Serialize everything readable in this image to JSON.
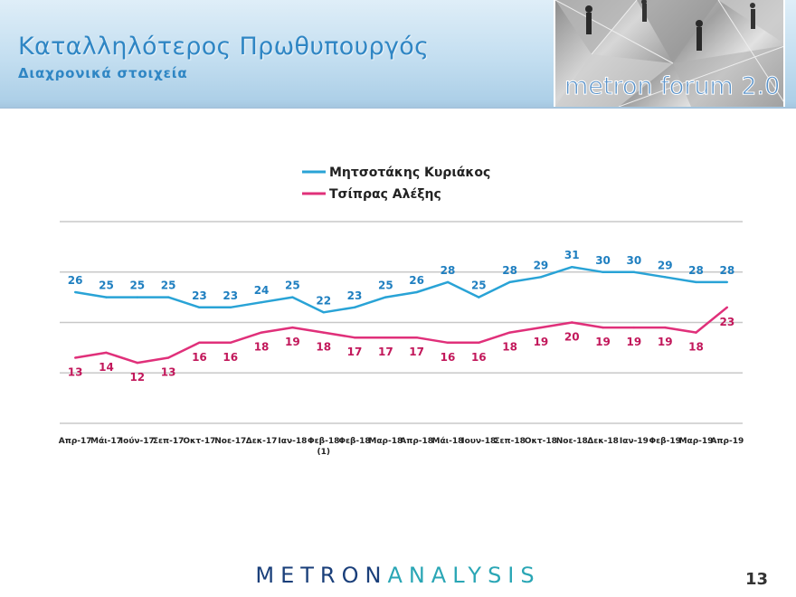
{
  "header": {
    "title": "Καταλληλότερος Πρωθυπουργός",
    "subtitle": "Διαχρονικά στοιχεία",
    "logo_text": "metron forum 2.0"
  },
  "footer": {
    "brand_part1": "METRON",
    "brand_part2": "ANALYSIS",
    "page_number": "13"
  },
  "chart_data": {
    "type": "line",
    "categories": [
      "Απρ-17",
      "Μάι-17",
      "Ιούν-17",
      "Σεπ-17",
      "Οκτ-17",
      "Νοε-17",
      "Δεκ-17",
      "Ιαν-18",
      "Φεβ-18 (1)",
      "Φεβ-18",
      "Μαρ-18",
      "Απρ-18",
      "Μάι-18",
      "Ιουν-18",
      "Σεπ-18",
      "Οκτ-18",
      "Νοε-18",
      "Δεκ-18",
      "Ιαν-19",
      "Φεβ-19",
      "Μαρ-19",
      "Απρ-19"
    ],
    "series": [
      {
        "name": "Μητσοτάκης Κυριάκος",
        "color": "#29a3d6",
        "label_color": "#1f7fc0",
        "values": [
          26,
          25,
          25,
          25,
          23,
          23,
          24,
          25,
          22,
          23,
          25,
          26,
          28,
          25,
          28,
          29,
          31,
          30,
          30,
          29,
          28,
          28
        ]
      },
      {
        "name": "Τσίπρας Αλέξης",
        "color": "#e0307a",
        "label_color": "#c2185b",
        "values": [
          13,
          14,
          12,
          13,
          16,
          16,
          18,
          19,
          18,
          17,
          17,
          17,
          16,
          16,
          18,
          19,
          20,
          19,
          19,
          19,
          18,
          23
        ]
      }
    ],
    "title": "",
    "xlabel": "",
    "ylabel": "",
    "ylim": [
      0,
      40
    ],
    "grid": true,
    "legend": "top-center"
  }
}
